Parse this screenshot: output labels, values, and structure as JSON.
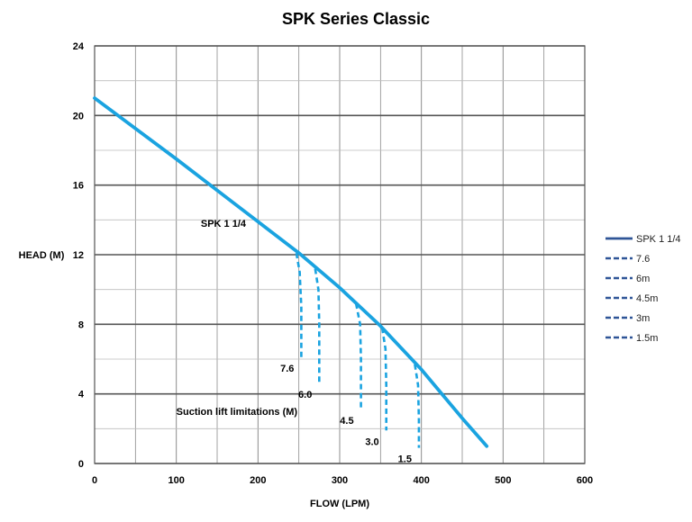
{
  "chart_data": {
    "type": "line",
    "title": "SPK Series Classic",
    "xlabel": "FLOW (LPM)",
    "ylabel": "HEAD (M)",
    "xlim": [
      0,
      600
    ],
    "ylim": [
      0,
      24
    ],
    "xticks": [
      0,
      100,
      200,
      300,
      400,
      500,
      600
    ],
    "yticks": [
      0,
      4,
      8,
      12,
      16,
      20,
      24
    ],
    "xtick_labels": [
      "0",
      "100",
      "200",
      "300",
      "400",
      "500",
      "600"
    ],
    "ytick_labels": [
      "0",
      "4",
      "8",
      "12",
      "16",
      "20",
      "24"
    ],
    "grid": true,
    "legend_position": "right",
    "series": [
      {
        "name": "SPK 1 1/4",
        "style": "solid",
        "color": "#1aa3e0",
        "x": [
          0,
          100,
          200,
          250,
          300,
          350,
          400,
          450,
          480
        ],
        "y": [
          21,
          17.5,
          13.9,
          12.1,
          10.1,
          7.9,
          5.4,
          2.6,
          1.0
        ]
      },
      {
        "name": "7.6",
        "style": "dashed",
        "color": "#1aa3e0",
        "label": "7.6",
        "x": [
          247,
          251,
          253,
          253
        ],
        "y": [
          12.1,
          11.0,
          9.0,
          6.1
        ]
      },
      {
        "name": "6m",
        "style": "dashed",
        "color": "#1aa3e0",
        "label": "6.0",
        "x": [
          270,
          274,
          275,
          275
        ],
        "y": [
          11.2,
          10.0,
          8.0,
          4.6
        ]
      },
      {
        "name": "4.5m",
        "style": "dashed",
        "color": "#1aa3e0",
        "label": "4.5",
        "x": [
          320,
          325,
          326,
          326
        ],
        "y": [
          9.2,
          8.0,
          6.0,
          3.1
        ]
      },
      {
        "name": "3m",
        "style": "dashed",
        "color": "#1aa3e0",
        "label": "3.0",
        "x": [
          352,
          356,
          357,
          357
        ],
        "y": [
          7.8,
          6.6,
          4.5,
          1.9
        ]
      },
      {
        "name": "1.5m",
        "style": "dashed",
        "color": "#1aa3e0",
        "label": "1.5",
        "x": [
          392,
          396,
          397,
          397
        ],
        "y": [
          5.7,
          4.5,
          2.5,
          0.9
        ]
      }
    ],
    "annotations": [
      {
        "text": "SPK 1 1/4",
        "x": 130,
        "y": 13.6
      },
      {
        "text": "Suction lift limitations (M)",
        "x": 100,
        "y": 2.8
      }
    ],
    "legend": [
      {
        "label": "SPK 1 1/4",
        "style": "solid",
        "color": "#2f5597"
      },
      {
        "label": "7.6",
        "style": "dashed",
        "color": "#2f5597"
      },
      {
        "label": "6m",
        "style": "dashed",
        "color": "#2f5597"
      },
      {
        "label": "4.5m",
        "style": "dashed",
        "color": "#2f5597"
      },
      {
        "label": "3m",
        "style": "dashed",
        "color": "#2f5597"
      },
      {
        "label": "1.5m",
        "style": "dashed",
        "color": "#2f5597"
      }
    ]
  }
}
